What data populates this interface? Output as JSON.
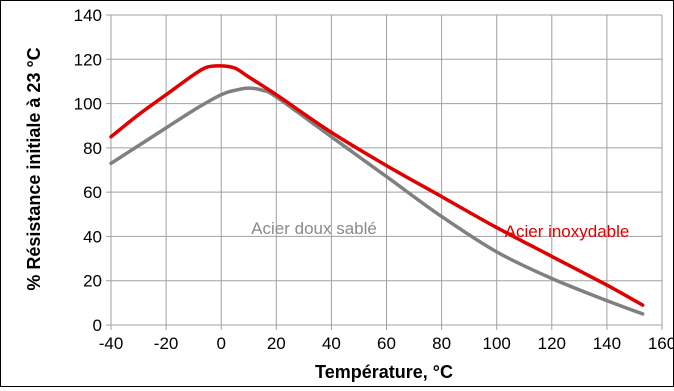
{
  "chart_data": {
    "type": "line",
    "xlabel": "Température, °C",
    "ylabel": "% Résistance initiale à 23 °C",
    "xlim": [
      -40,
      160
    ],
    "ylim": [
      0,
      140
    ],
    "x_ticks": [
      -40,
      -20,
      0,
      20,
      40,
      60,
      80,
      100,
      120,
      140,
      160
    ],
    "y_ticks": [
      0,
      20,
      40,
      60,
      80,
      100,
      120,
      140
    ],
    "grid": true,
    "series": [
      {
        "name": "Acier inoxydable",
        "color": "#e00000",
        "points": [
          [
            -40,
            85
          ],
          [
            -30,
            95
          ],
          [
            -20,
            104
          ],
          [
            -10,
            113
          ],
          [
            -5,
            116.5
          ],
          [
            0,
            117
          ],
          [
            5,
            116
          ],
          [
            10,
            112
          ],
          [
            20,
            104
          ],
          [
            40,
            87
          ],
          [
            60,
            72
          ],
          [
            80,
            58
          ],
          [
            100,
            44
          ],
          [
            120,
            31
          ],
          [
            140,
            18
          ],
          [
            153,
            9
          ]
        ]
      },
      {
        "name": "Acier doux sablé",
        "color": "#808080",
        "points": [
          [
            -40,
            73
          ],
          [
            -30,
            81
          ],
          [
            -20,
            89
          ],
          [
            -10,
            97
          ],
          [
            0,
            104
          ],
          [
            5,
            106
          ],
          [
            10,
            107
          ],
          [
            15,
            106
          ],
          [
            20,
            103
          ],
          [
            40,
            85
          ],
          [
            60,
            67
          ],
          [
            80,
            49
          ],
          [
            100,
            33
          ],
          [
            120,
            21
          ],
          [
            140,
            11
          ],
          [
            153,
            5
          ]
        ]
      }
    ],
    "annotations": {
      "gray_label": "Acier doux sablé",
      "red_label": "Acier inoxydable"
    }
  }
}
